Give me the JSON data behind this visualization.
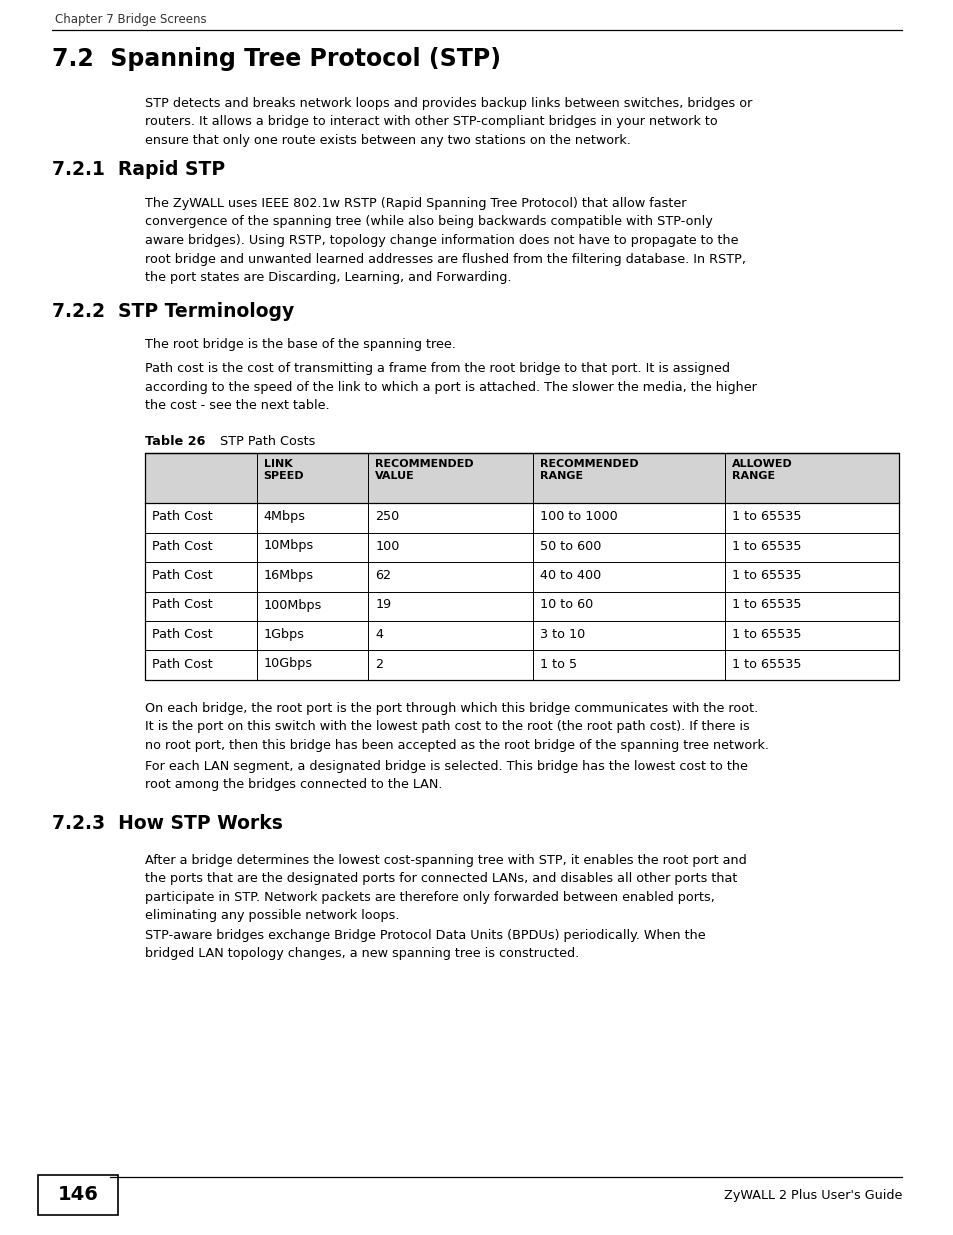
{
  "page_bg": "#ffffff",
  "header_text": "Chapter 7 Bridge Screens",
  "section_title": "7.2  Spanning Tree Protocol (STP)",
  "section_body": "STP detects and breaks network loops and provides backup links between switches, bridges or\nrouters. It allows a bridge to interact with other STP-compliant bridges in your network to\nensure that only one route exists between any two stations on the network.",
  "subsec1_title": "7.2.1  Rapid STP",
  "subsec1_body": "The ZyWALL uses IEEE 802.1w RSTP (Rapid Spanning Tree Protocol) that allow faster\nconvergence of the spanning tree (while also being backwards compatible with STP-only\naware bridges). Using RSTP, topology change information does not have to propagate to the\nroot bridge and unwanted learned addresses are flushed from the filtering database. In RSTP,\nthe port states are Discarding, Learning, and Forwarding.",
  "subsec2_title": "7.2.2  STP Terminology",
  "subsec2_para1": "The root bridge is the base of the spanning tree.",
  "subsec2_para2": "Path cost is the cost of transmitting a frame from the root bridge to that port. It is assigned\naccording to the speed of the link to which a port is attached. The slower the media, the higher\nthe cost - see the next table.",
  "table_caption_bold": "Table 26",
  "table_caption_normal": "   STP Path Costs",
  "table_headers": [
    "",
    "LINK\nSPEED",
    "RECOMMENDED\nVALUE",
    "RECOMMENDED\nRANGE",
    "ALLOWED\nRANGE"
  ],
  "table_rows": [
    [
      "Path Cost",
      "4Mbps",
      "250",
      "100 to 1000",
      "1 to 65535"
    ],
    [
      "Path Cost",
      "10Mbps",
      "100",
      "50 to 600",
      "1 to 65535"
    ],
    [
      "Path Cost",
      "16Mbps",
      "62",
      "40 to 400",
      "1 to 65535"
    ],
    [
      "Path Cost",
      "100Mbps",
      "19",
      "10 to 60",
      "1 to 65535"
    ],
    [
      "Path Cost",
      "1Gbps",
      "4",
      "3 to 10",
      "1 to 65535"
    ],
    [
      "Path Cost",
      "10Gbps",
      "2",
      "1 to 5",
      "1 to 65535"
    ]
  ],
  "subsec2_para3": "On each bridge, the root port is the port through which this bridge communicates with the root.\nIt is the port on this switch with the lowest path cost to the root (the root path cost). If there is\nno root port, then this bridge has been accepted as the root bridge of the spanning tree network.",
  "subsec2_para4": "For each LAN segment, a designated bridge is selected. This bridge has the lowest cost to the\nroot among the bridges connected to the LAN.",
  "subsec3_title": "7.2.3  How STP Works",
  "subsec3_para1": "After a bridge determines the lowest cost-spanning tree with STP, it enables the root port and\nthe ports that are the designated ports for connected LANs, and disables all other ports that\nparticipate in STP. Network packets are therefore only forwarded between enabled ports,\neliminating any possible network loops.",
  "subsec3_para2": "STP-aware bridges exchange Bridge Protocol Data Units (BPDUs) periodically. When the\nbridged LAN topology changes, a new spanning tree is constructed.",
  "footer_page": "146",
  "footer_right": "ZyWALL 2 Plus User's Guide"
}
